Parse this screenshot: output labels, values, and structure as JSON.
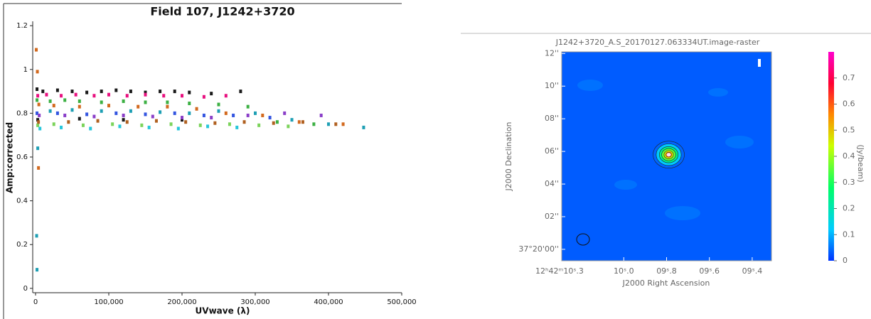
{
  "chart_data": [
    {
      "type": "scatter",
      "title": "Field 107, J1242+3720",
      "xlabel": "UVwave (λ)",
      "ylabel": "Amp:corrected",
      "xlim": [
        0,
        500000
      ],
      "ylim": [
        -0.02,
        1.22
      ],
      "xticks": [
        0,
        {
          "value": 100000,
          "label": "100,000"
        },
        {
          "value": 200000,
          "label": "200,000"
        },
        {
          "value": 300000,
          "label": "300,000"
        },
        {
          "value": 400000,
          "label": "400,000"
        },
        {
          "value": 500000,
          "label": "500,000"
        }
      ],
      "yticks": [
        0,
        0.2,
        0.4,
        0.6,
        0.8,
        1,
        1.2
      ],
      "series": [
        {
          "color": "#1a1a1a",
          "x": [
            2000,
            10000,
            30000,
            50000,
            70000,
            90000,
            110000,
            130000,
            150000,
            170000,
            190000,
            210000,
            240000,
            280000,
            3000,
            60000,
            120000,
            200000
          ],
          "values": [
            0.91,
            0.9,
            0.905,
            0.9,
            0.895,
            0.9,
            0.905,
            0.9,
            0.895,
            0.9,
            0.9,
            0.895,
            0.89,
            0.9,
            0.77,
            0.775,
            0.77,
            0.77
          ]
        },
        {
          "color": "#e8107f",
          "x": [
            3000,
            15000,
            35000,
            55000,
            80000,
            100000,
            125000,
            150000,
            175000,
            200000,
            230000,
            260000
          ],
          "values": [
            0.88,
            0.885,
            0.88,
            0.885,
            0.88,
            0.885,
            0.88,
            0.885,
            0.88,
            0.88,
            0.875,
            0.88
          ]
        },
        {
          "color": "#3cb043",
          "x": [
            2000,
            20000,
            40000,
            60000,
            90000,
            120000,
            150000,
            180000,
            210000,
            250000,
            290000,
            330000,
            380000
          ],
          "values": [
            0.86,
            0.855,
            0.86,
            0.855,
            0.85,
            0.855,
            0.85,
            0.85,
            0.845,
            0.84,
            0.83,
            0.76,
            0.75
          ]
        },
        {
          "color": "#d2691e",
          "x": [
            1000,
            2500,
            4000,
            4500,
            25000,
            60000,
            100000,
            140000,
            180000,
            220000,
            260000,
            310000,
            360000,
            420000
          ],
          "values": [
            1.09,
            0.99,
            0.55,
            0.84,
            0.835,
            0.83,
            0.835,
            0.83,
            0.83,
            0.82,
            0.8,
            0.79,
            0.76,
            0.75
          ]
        },
        {
          "color": "#1e9fb4",
          "x": [
            1500,
            2000,
            3000,
            20000,
            50000,
            90000,
            130000,
            170000,
            210000,
            250000,
            300000,
            350000,
            400000,
            448000
          ],
          "values": [
            0.24,
            0.085,
            0.64,
            0.81,
            0.815,
            0.81,
            0.81,
            0.805,
            0.8,
            0.81,
            0.8,
            0.77,
            0.75,
            0.735
          ]
        },
        {
          "color": "#3355e0",
          "x": [
            2000,
            30000,
            70000,
            110000,
            150000,
            190000,
            230000,
            270000,
            320000
          ],
          "values": [
            0.8,
            0.8,
            0.795,
            0.8,
            0.795,
            0.8,
            0.79,
            0.79,
            0.78
          ]
        },
        {
          "color": "#8a3ec8",
          "x": [
            5000,
            40000,
            80000,
            120000,
            160000,
            200000,
            240000,
            290000,
            340000,
            390000
          ],
          "values": [
            0.79,
            0.79,
            0.785,
            0.79,
            0.785,
            0.78,
            0.78,
            0.79,
            0.8,
            0.79
          ]
        },
        {
          "color": "#7bd35a",
          "x": [
            3000,
            25000,
            65000,
            105000,
            145000,
            185000,
            225000,
            265000,
            305000,
            345000
          ],
          "values": [
            0.745,
            0.75,
            0.745,
            0.75,
            0.745,
            0.75,
            0.745,
            0.75,
            0.745,
            0.74
          ]
        },
        {
          "color": "#b06020",
          "x": [
            4000,
            45000,
            85000,
            125000,
            165000,
            205000,
            245000,
            285000,
            325000,
            365000,
            410000
          ],
          "values": [
            0.76,
            0.76,
            0.765,
            0.76,
            0.765,
            0.76,
            0.755,
            0.76,
            0.755,
            0.76,
            0.75
          ]
        },
        {
          "color": "#26c6da",
          "x": [
            6000,
            35000,
            75000,
            115000,
            155000,
            195000,
            235000,
            275000
          ],
          "values": [
            0.73,
            0.735,
            0.73,
            0.74,
            0.735,
            0.73,
            0.74,
            0.735
          ]
        }
      ]
    },
    {
      "type": "image",
      "title": "J1242+3720_A.S_20170127.063334UT.image-raster",
      "xlabel": "J2000 Right Ascension",
      "ylabel": "J2000 Declination",
      "xlim": [
        10.29,
        9.31
      ],
      "ylim": [
        -0.7,
        12.1
      ],
      "xticks": [
        {
          "value": 10.3,
          "label": "12ʰ42ᵐ10ˢ.3"
        },
        {
          "value": 10.0,
          "label": "10ˢ.0"
        },
        {
          "value": 9.8,
          "label": "09ˢ.8"
        },
        {
          "value": 9.6,
          "label": "09ˢ.6"
        },
        {
          "value": 9.4,
          "label": "09ˢ.4"
        }
      ],
      "yticks": [
        {
          "value": 12,
          "label": "12''"
        },
        {
          "value": 10,
          "label": "10''"
        },
        {
          "value": 8,
          "label": "08''"
        },
        {
          "value": 6,
          "label": "06''"
        },
        {
          "value": 4,
          "label": "04''"
        },
        {
          "value": 2,
          "label": "02''"
        },
        {
          "value": 0,
          "label": "37°20'00''"
        }
      ],
      "colorbar": {
        "label": "(Jy/beam)",
        "lim": [
          0,
          0.8
        ],
        "ticks": [
          0,
          0.1,
          0.2,
          0.3,
          0.4,
          0.5,
          0.6,
          0.7
        ]
      },
      "source": {
        "x": 9.79,
        "y": 5.8,
        "peak": 0.79
      }
    }
  ]
}
